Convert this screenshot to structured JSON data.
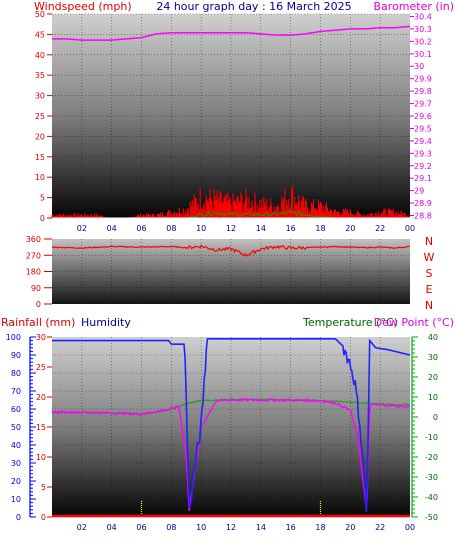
{
  "title": "24 hour graph day : 16 March 2025",
  "colors": {
    "wind": "#ff0000",
    "gust": "#ff0000",
    "wind_avg": "#00aa00",
    "baro": "#ff00ff",
    "dir": "#ff0000",
    "rain": "#ff0000",
    "humidity": "#2222ff",
    "temperature": "#339933",
    "dewpoint": "#ff00ff",
    "label_red": "#dd0000",
    "label_navy": "#000099",
    "label_green": "#006600",
    "label_magenta": "#dd00dd",
    "axis_blue": "#0000ff",
    "axis_green": "#00aa00"
  },
  "chart_data": [
    {
      "type": "line",
      "id": "wind_baro",
      "title": "24 hour graph day : 16 March 2025",
      "ylabel_left": "Windspeed (mph)",
      "ylabel_right": "Barometer (in)",
      "x_ticks": [
        "02",
        "04",
        "06",
        "08",
        "10",
        "12",
        "14",
        "16",
        "18",
        "20",
        "22",
        "00"
      ],
      "y_left_ticks": [
        "0",
        "5",
        "10",
        "15",
        "20",
        "25",
        "30",
        "35",
        "40",
        "45",
        "50"
      ],
      "y_left_lim": [
        0,
        50
      ],
      "y_right_ticks": [
        "28.8",
        "28.9",
        "29",
        "29.1",
        "29.2",
        "29.3",
        "29.4",
        "29.5",
        "29.6",
        "29.7",
        "29.8",
        "29.9",
        "30",
        "30.1",
        "30.2",
        "30.3",
        "30.4"
      ],
      "y_right_lim": [
        28.78,
        30.42
      ],
      "series": [
        {
          "name": "Barometer",
          "axis": "right",
          "x": [
            0,
            1,
            2,
            3,
            4,
            5,
            6,
            7,
            8,
            9,
            10,
            11,
            12,
            13,
            14,
            15,
            16,
            17,
            18,
            19,
            20,
            21,
            22,
            23,
            24
          ],
          "y": [
            30.22,
            30.22,
            30.21,
            30.21,
            30.21,
            30.22,
            30.23,
            30.26,
            30.27,
            30.27,
            30.27,
            30.27,
            30.27,
            30.27,
            30.26,
            30.25,
            30.25,
            30.26,
            30.28,
            30.29,
            30.3,
            30.3,
            30.31,
            30.31,
            30.32
          ]
        },
        {
          "name": "Wind gust",
          "axis": "left",
          "x": [
            0,
            1,
            2,
            3,
            4,
            5,
            6,
            7,
            8,
            9,
            10,
            11,
            12,
            13,
            14,
            15,
            16,
            17,
            18,
            19,
            20,
            21,
            22,
            23,
            24
          ],
          "y": [
            1,
            1,
            1,
            1,
            0,
            0,
            1,
            1,
            2,
            3,
            7,
            6,
            5,
            6,
            5,
            4,
            8,
            4,
            4,
            2,
            2,
            1,
            2,
            2,
            1
          ]
        },
        {
          "name": "Wind average",
          "axis": "left",
          "x": [
            0,
            2,
            4,
            6,
            8,
            9,
            10,
            11,
            12,
            13,
            14,
            15,
            16,
            17,
            18,
            19,
            20,
            22,
            24
          ],
          "y": [
            0,
            0,
            0,
            0,
            0,
            0,
            1,
            1.5,
            1,
            1,
            1,
            1,
            1.5,
            1,
            0.5,
            0,
            0,
            0,
            0
          ]
        }
      ]
    },
    {
      "type": "line",
      "id": "direction",
      "y_left_ticks": [
        "0",
        "90",
        "180",
        "270",
        "360"
      ],
      "y_left_lim": [
        0,
        360
      ],
      "compass_labels": [
        "N",
        "W",
        "S",
        "E",
        "N"
      ],
      "series": [
        {
          "name": "Wind direction",
          "x": [
            0,
            2,
            4,
            6,
            8,
            9,
            10,
            11,
            12,
            13,
            14,
            15,
            16,
            17,
            18,
            19,
            20,
            21,
            22,
            23,
            24
          ],
          "y": [
            315,
            310,
            318,
            315,
            318,
            312,
            320,
            300,
            305,
            270,
            305,
            318,
            310,
            312,
            315,
            318,
            315,
            312,
            315,
            310,
            318
          ]
        }
      ]
    },
    {
      "type": "line",
      "id": "temp_hum_rain",
      "label_rain": "Rainfall (mm)",
      "label_humidity": "Humidity",
      "label_temperature": "Temperature (°C)",
      "label_dewpoint": "Dew Point (°C)",
      "x_ticks": [
        "02",
        "04",
        "06",
        "08",
        "10",
        "12",
        "14",
        "16",
        "18",
        "20",
        "22",
        "00"
      ],
      "y_hum_ticks": [
        "0",
        "10",
        "20",
        "30",
        "40",
        "50",
        "60",
        "70",
        "80",
        "90",
        "100"
      ],
      "y_hum_lim": [
        0,
        100
      ],
      "y_rain_ticks": [
        "0",
        "5",
        "10",
        "15",
        "20",
        "25",
        "30"
      ],
      "y_rain_lim": [
        0,
        30
      ],
      "y_temp_ticks": [
        "-50",
        "-40",
        "-30",
        "-20",
        "-10",
        "0",
        "10",
        "20",
        "30",
        "40"
      ],
      "y_temp_lim": [
        -50,
        40
      ],
      "series": [
        {
          "name": "Humidity",
          "axis": "hum",
          "x": [
            0,
            4,
            7.5,
            7.8,
            8,
            8.5,
            8.9,
            9.2,
            9.6,
            10,
            10.4,
            14,
            17,
            18,
            19,
            19.5,
            20,
            20.3,
            20.6,
            20.9,
            21.1,
            21.3,
            21.7,
            22.5,
            23.5,
            24
          ],
          "y": [
            98,
            98,
            98,
            98,
            96,
            96,
            96,
            2,
            30,
            50,
            99,
            99,
            99,
            99,
            99,
            95,
            85,
            75,
            55,
            25,
            1,
            98,
            94,
            93,
            91,
            90
          ]
        },
        {
          "name": "Temperature",
          "axis": "temp",
          "x": [
            0,
            2,
            4,
            6,
            7,
            8,
            9,
            10,
            11,
            12,
            14,
            16,
            18,
            20,
            22,
            24
          ],
          "y": [
            2.5,
            2.3,
            2.0,
            1.5,
            2.5,
            4.0,
            6.5,
            8.2,
            8.5,
            8.8,
            8.7,
            8.5,
            8.2,
            7.5,
            6.5,
            6.0
          ]
        },
        {
          "name": "Dew Point",
          "axis": "temp",
          "x": [
            0,
            2,
            4,
            6,
            8,
            8.5,
            9,
            9.2,
            9.5,
            10,
            11,
            12,
            14,
            16,
            18,
            19,
            20,
            20.5,
            20.9,
            21.1,
            21.3,
            22,
            23,
            24
          ],
          "y": [
            2.5,
            2.3,
            2.0,
            1.5,
            4.0,
            5.5,
            -20,
            -47,
            -30,
            -5,
            8.0,
            8.5,
            8.5,
            8.4,
            8.1,
            7.0,
            3.5,
            -10,
            -35,
            -48,
            6.0,
            6.0,
            5.5,
            5.2
          ]
        },
        {
          "name": "Rainfall",
          "axis": "rain",
          "x": [
            0,
            24
          ],
          "y": [
            0,
            0
          ]
        }
      ]
    }
  ]
}
